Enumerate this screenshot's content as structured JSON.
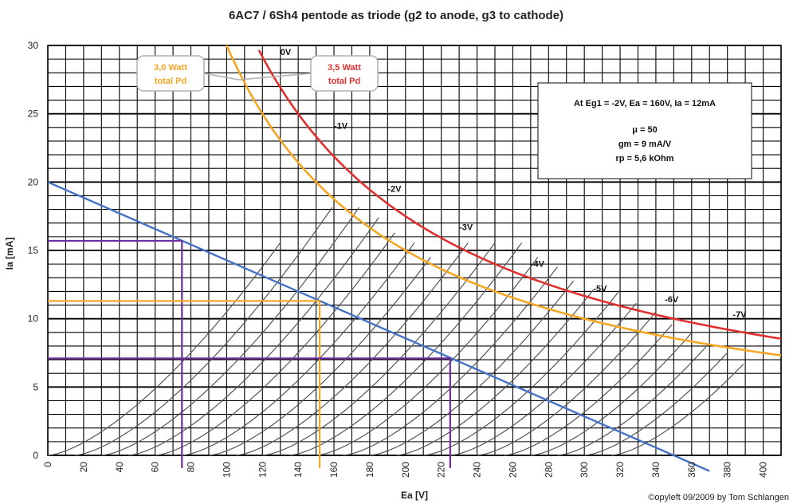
{
  "chart_data": {
    "type": "line",
    "title": "6AC7 / 6Sh4 pentode as triode (g2 to anode, g3 to cathode)",
    "xlabel": "Ea [V]",
    "ylabel": "Ia [mA]",
    "xlim": [
      0,
      410
    ],
    "ylim": [
      0,
      30
    ],
    "x_ticks": [
      0,
      20,
      40,
      60,
      80,
      100,
      120,
      140,
      160,
      180,
      200,
      220,
      240,
      260,
      280,
      300,
      320,
      340,
      360,
      380,
      400
    ],
    "y_ticks": [
      0,
      5,
      10,
      15,
      20,
      25,
      30
    ],
    "grid": true,
    "grid_curves": {
      "shape": "Ia = k*(Ea - V0)^1.5",
      "k": 0.0105,
      "start_voltages": [
        0,
        15,
        30,
        45,
        60,
        75,
        90,
        105,
        120,
        135,
        150,
        165,
        180,
        195,
        210,
        225,
        240,
        255,
        270,
        285,
        300,
        315
      ],
      "end_voltages": [
        130,
        160,
        175,
        185,
        195,
        205,
        215,
        235,
        250,
        265,
        275,
        285,
        295,
        305,
        320,
        330,
        340,
        350,
        360,
        370,
        380,
        390
      ]
    },
    "grid_curve_labels": [
      {
        "text": "0V",
        "ea": 130,
        "ia": 29.3
      },
      {
        "text": "-1V",
        "ea": 160,
        "ia": 23.9
      },
      {
        "text": "-2V",
        "ea": 190,
        "ia": 19.3
      },
      {
        "text": "-3V",
        "ea": 230,
        "ia": 16.5
      },
      {
        "text": "-4V",
        "ea": 270,
        "ia": 13.8
      },
      {
        "text": "-5V",
        "ea": 305,
        "ia": 12.0
      },
      {
        "text": "-6V",
        "ea": 345,
        "ia": 11.2
      },
      {
        "text": "-7V",
        "ea": 383,
        "ia": 10.1
      }
    ],
    "series": [
      {
        "name": "3,0 Watt total Pd",
        "kind": "hyperbola",
        "watts": 3.0,
        "color": "#f5a623"
      },
      {
        "name": "3,5 Watt total Pd",
        "kind": "hyperbola",
        "watts": 3.5,
        "color": "#e03030"
      },
      {
        "name": "load line",
        "kind": "line",
        "x": [
          0,
          370
        ],
        "y": [
          20,
          -1.15
        ],
        "color": "#4472c4"
      }
    ],
    "markers": [
      {
        "color": "#7030a0",
        "ea": 75,
        "ia": 15.7
      },
      {
        "color": "#f5a623",
        "ea": 152,
        "ia": 11.3
      },
      {
        "color": "#7030a0",
        "ea": 225,
        "ia": 7.1
      }
    ],
    "annotations": {
      "pd30": {
        "line1": "3,0 Watt",
        "line2": "total Pd",
        "color": "#f5a623"
      },
      "pd35": {
        "line1": "3,5 Watt",
        "line2": "total Pd",
        "color": "#e03030"
      },
      "params": {
        "line1": "At Eg1 = -2V, Ea = 160V, Ia = 12mA",
        "line2": "μ = 50",
        "line3": "gm = 9 mA/V",
        "line4": "rp = 5,6 kOhm"
      }
    },
    "copyright": "©opyleft 09/2009 by Tom Schlangen"
  }
}
